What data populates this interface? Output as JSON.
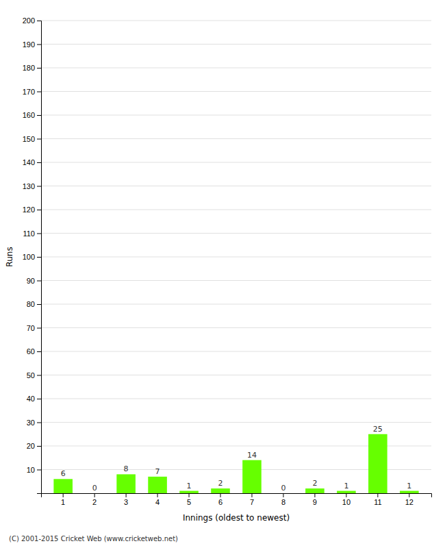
{
  "chart_data": {
    "type": "bar",
    "xlabel": "Innings (oldest to newest)",
    "ylabel": "Runs",
    "categories": [
      1,
      2,
      3,
      4,
      5,
      6,
      7,
      8,
      9,
      10,
      11,
      12
    ],
    "values": [
      6,
      0,
      8,
      7,
      1,
      2,
      14,
      0,
      2,
      1,
      25,
      1
    ],
    "color": "#66ff00",
    "ylim": [
      0,
      200
    ],
    "yticks": [
      10,
      20,
      30,
      40,
      50,
      60,
      70,
      80,
      90,
      100,
      110,
      120,
      130,
      140,
      150,
      160,
      170,
      180,
      190,
      200
    ],
    "grid": true,
    "data_labels": true,
    "annotations": [
      "(C) 2001-2015 Cricket Web (www.cricketweb.net)"
    ]
  }
}
